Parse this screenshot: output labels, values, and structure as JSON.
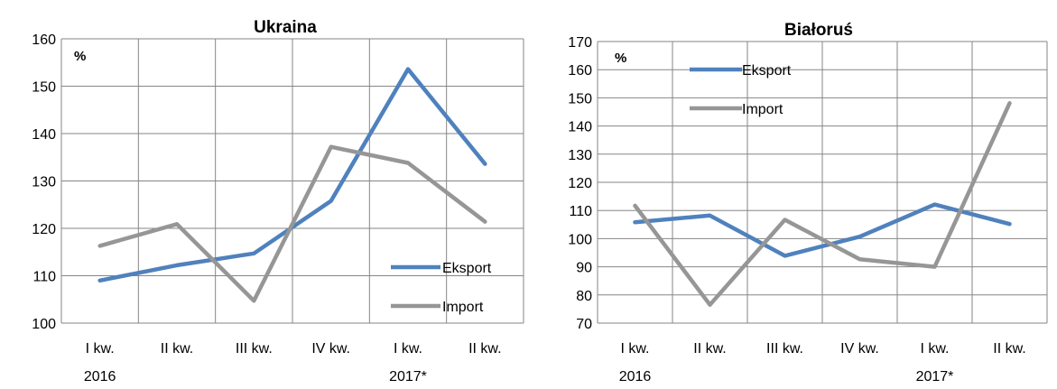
{
  "chart_data": [
    {
      "type": "line",
      "title": "Ukraina",
      "unit_label": "%",
      "categories": [
        [
          "I kw.",
          "2016"
        ],
        [
          "II kw.",
          ""
        ],
        [
          "III kw.",
          ""
        ],
        [
          "IV kw.",
          ""
        ],
        [
          "I kw.",
          "2017*"
        ],
        [
          "II kw.",
          ""
        ]
      ],
      "ylim": [
        100,
        160
      ],
      "yticks": [
        100,
        110,
        120,
        130,
        140,
        150,
        160
      ],
      "grid": true,
      "legend_position": "bottom-right",
      "series": [
        {
          "name": "Eksport",
          "color": "#4f81bd",
          "values": [
            109.0,
            112.2,
            114.7,
            125.8,
            153.6,
            133.6
          ]
        },
        {
          "name": "Import",
          "color": "#969696",
          "values": [
            116.3,
            120.9,
            104.7,
            137.2,
            133.8,
            121.4
          ]
        }
      ]
    },
    {
      "type": "line",
      "title": "Białoruś",
      "unit_label": "%",
      "categories": [
        [
          "I kw.",
          "2016"
        ],
        [
          "II kw.",
          ""
        ],
        [
          "III kw.",
          ""
        ],
        [
          "IV kw.",
          ""
        ],
        [
          "I kw.",
          "2017*"
        ],
        [
          "II kw.",
          ""
        ]
      ],
      "ylim": [
        70,
        170
      ],
      "yticks": [
        70,
        80,
        90,
        100,
        110,
        120,
        130,
        140,
        150,
        160,
        170
      ],
      "grid": true,
      "legend_position": "top-left",
      "series": [
        {
          "name": "Eksport",
          "color": "#4f81bd",
          "values": [
            105.8,
            108.2,
            93.9,
            100.7,
            112.1,
            105.2
          ]
        },
        {
          "name": "Import",
          "color": "#969696",
          "values": [
            111.7,
            76.5,
            106.7,
            92.7,
            90.0,
            148.1
          ]
        }
      ]
    }
  ]
}
